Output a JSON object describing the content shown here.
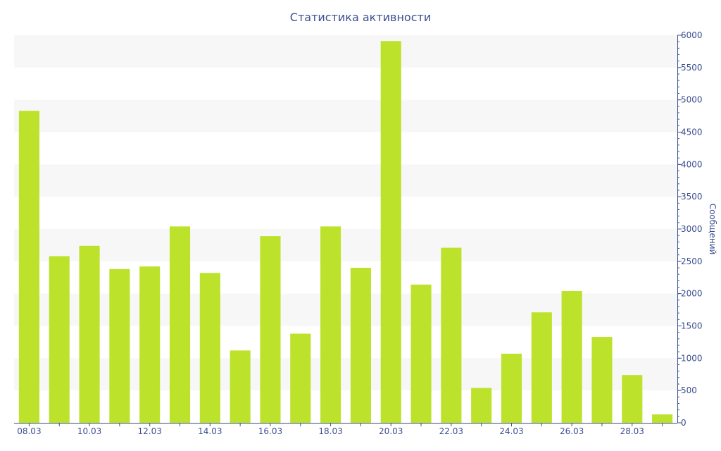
{
  "chart_data": {
    "type": "bar",
    "title": "Статистика активности",
    "xlabel": "",
    "ylabel": "Сообщений",
    "y_axis_position": "right",
    "ylim": [
      0,
      6000
    ],
    "y_ticks": [
      0,
      500,
      1000,
      1500,
      2000,
      2500,
      3000,
      3500,
      4000,
      4500,
      5000,
      5500,
      6000
    ],
    "x_tick_labels": [
      "08.03",
      "10.03",
      "12.03",
      "14.03",
      "16.03",
      "18.03",
      "20.03",
      "22.03",
      "24.03",
      "26.03",
      "28.03"
    ],
    "categories": [
      "08.03",
      "09.03",
      "10.03",
      "11.03",
      "12.03",
      "13.03",
      "14.03",
      "15.03",
      "16.03",
      "17.03",
      "18.03",
      "19.03",
      "20.03",
      "21.03",
      "22.03",
      "23.03",
      "24.03",
      "25.03",
      "26.03",
      "27.03",
      "28.03",
      "29.03"
    ],
    "values": [
      4830,
      2580,
      2740,
      2380,
      2420,
      3040,
      2320,
      1120,
      2890,
      1380,
      3040,
      2400,
      5910,
      2140,
      2710,
      540,
      1070,
      1710,
      2040,
      1330,
      740,
      130
    ],
    "bar_color": "#bde22c",
    "band_color": "#f7f7f7",
    "axis_color": "#3b4f8f",
    "grid": "alternating horizontal bands",
    "legend": "none"
  }
}
